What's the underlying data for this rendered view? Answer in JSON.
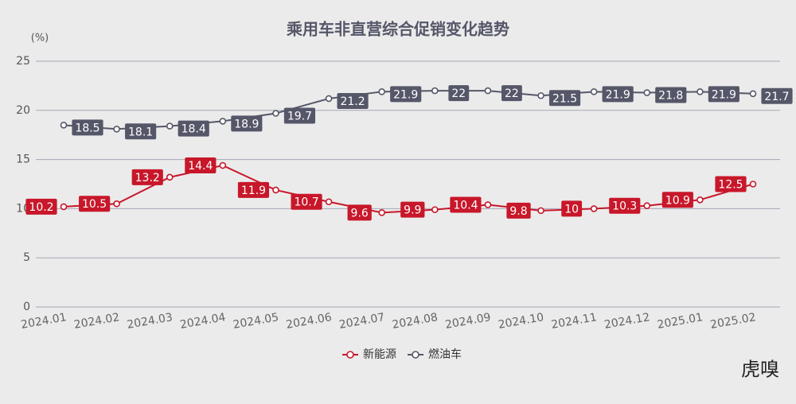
{
  "chart_data": {
    "type": "line",
    "title": "乘用车非直营综合促销变化趋势",
    "y_unit": "(%)",
    "watermark": "虎嗅",
    "categories": [
      "2024.01",
      "2024.02",
      "2024.03",
      "2024.04",
      "2024.05",
      "2024.06",
      "2024.07",
      "2024.08",
      "2024.09",
      "2024.10",
      "2024.11",
      "2024.12",
      "2025.01",
      "2025.02"
    ],
    "series": [
      {
        "name": "新能源",
        "color": "#c8172a",
        "values": [
          10.2,
          10.5,
          13.2,
          14.4,
          11.9,
          10.7,
          9.6,
          9.9,
          10.4,
          9.8,
          10,
          10.3,
          10.9,
          12.5
        ]
      },
      {
        "name": "燃油车",
        "color": "#555769",
        "values": [
          18.5,
          18.1,
          18.4,
          18.9,
          19.7,
          21.2,
          21.9,
          22,
          22,
          21.5,
          21.9,
          21.8,
          21.9,
          21.7
        ]
      }
    ],
    "ylim": [
      0,
      25
    ],
    "yticks": [
      0,
      5,
      10,
      15,
      20,
      25
    ],
    "grid": true,
    "legend": "bottom"
  }
}
